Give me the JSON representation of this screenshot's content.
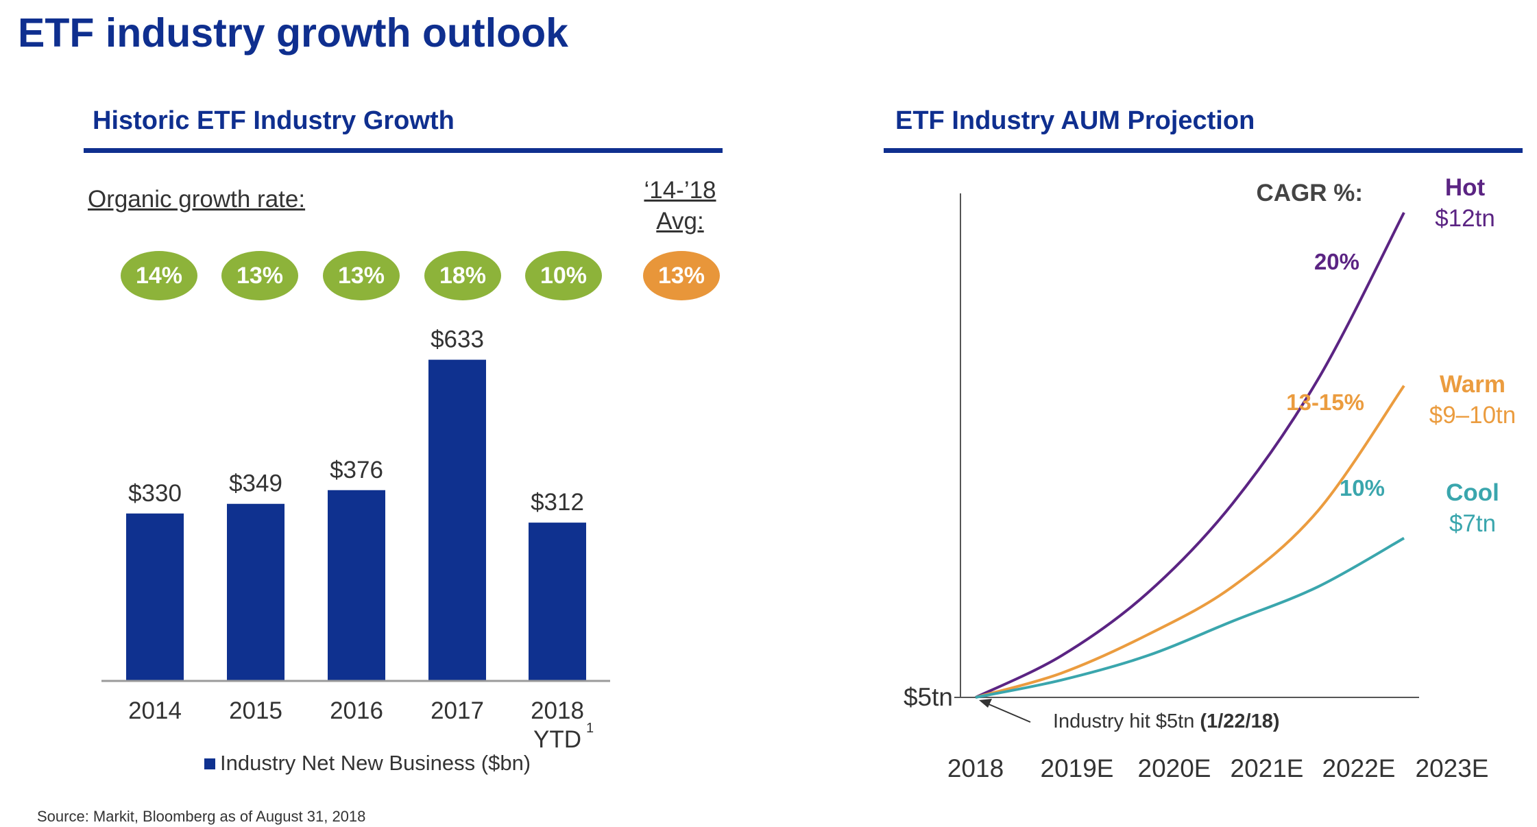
{
  "title": "ETF industry growth outlook",
  "source": "Source: Markit, Bloomberg as of August 31, 2018",
  "left_section": {
    "title": "Historic ETF Industry Growth",
    "growth_label": "Organic growth rate:",
    "avg_label_line1": "‘14-’18",
    "avg_label_line2": "Avg:",
    "growth_rates": [
      "14%",
      "13%",
      "13%",
      "18%",
      "10%"
    ],
    "avg_rate": "13%",
    "colors": {
      "rate_pill": "#8db33a",
      "avg_pill": "#e8963a",
      "bar": "#0f318f"
    }
  },
  "right_section": {
    "title": "ETF Industry AUM Projection",
    "cagr_label": "CAGR %:",
    "annotation_text": "Industry hit $5tn ",
    "annotation_date": "(1/22/18)"
  },
  "chart_data": [
    {
      "type": "bar",
      "categories": [
        "2014",
        "2015",
        "2016",
        "2017",
        "2018 YTD"
      ],
      "tick_labels": [
        [
          "2014"
        ],
        [
          "2015"
        ],
        [
          "2016"
        ],
        [
          "2017"
        ],
        [
          "2018",
          "YTD"
        ]
      ],
      "footnote_marker": "1",
      "values": [
        330,
        349,
        376,
        633,
        312
      ],
      "data_labels": [
        "$330",
        "$349",
        "$376",
        "$633",
        "$312"
      ],
      "series": [
        {
          "name": "Industry Net New Business ($bn)",
          "values": [
            330,
            349,
            376,
            633,
            312
          ]
        }
      ],
      "legend_position": "bottom",
      "ylim": [
        0,
        650
      ],
      "grid": false
    },
    {
      "type": "line",
      "x": [
        "2018",
        "2019E",
        "2020E",
        "2021E",
        "2022E",
        "2023E"
      ],
      "y_tick_label": "$5tn",
      "ylim": [
        5,
        12
      ],
      "grid": false,
      "series": [
        {
          "name": "Hot",
          "cagr": "20%",
          "end_label": "$12tn",
          "color": "#5b2483",
          "values": [
            5,
            5.6,
            6.5,
            7.8,
            9.6,
            12
          ]
        },
        {
          "name": "Warm",
          "cagr": "13-15%",
          "end_label": "$9–10tn",
          "color": "#eb9c3f",
          "values": [
            5,
            5.35,
            5.9,
            6.6,
            7.7,
            9.5
          ]
        },
        {
          "name": "Cool",
          "cagr": "10%",
          "end_label": "$7tn",
          "color": "#3aa6ad",
          "values": [
            5,
            5.25,
            5.6,
            6.1,
            6.6,
            7.3
          ]
        }
      ]
    }
  ]
}
